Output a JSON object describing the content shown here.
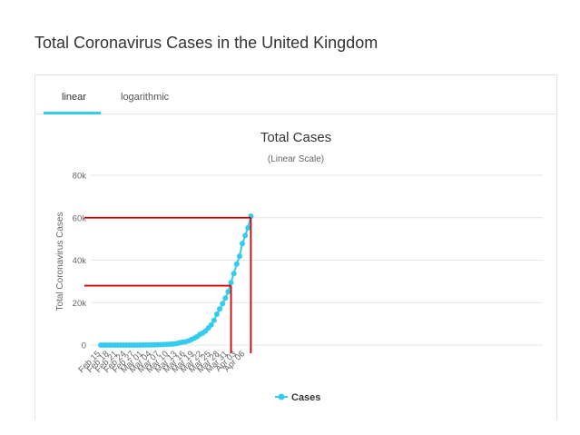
{
  "page_title": "Total Coronavirus Cases in the United Kingdom",
  "tabs": [
    {
      "label": "linear",
      "active": true
    },
    {
      "label": "logarithmic",
      "active": false
    }
  ],
  "colors": {
    "series": "#33ccee",
    "annotation": "#cc0000",
    "grid": "#e6e6e6",
    "tab_accent": "#33ccee"
  },
  "chart_data": {
    "type": "line",
    "title": "Total Cases",
    "subtitle": "(Linear Scale)",
    "ylabel": "Total Coronavirus Cases",
    "xlabel": "",
    "ylim": [
      0,
      80000
    ],
    "yticks": [
      0,
      20000,
      40000,
      60000,
      80000
    ],
    "ytick_labels": [
      "0",
      "20k",
      "40k",
      "60k",
      "80k"
    ],
    "x_tick_labels": [
      "Feb 15",
      "Feb 18",
      "Feb 21",
      "Feb 24",
      "Feb 27",
      "Mar 01",
      "Mar 04",
      "Mar 07",
      "Mar 10",
      "Mar 13",
      "Mar 16",
      "Mar 19",
      "Mar 22",
      "Mar 25",
      "Mar 28",
      "Mar 31",
      "Apr 03",
      "Apr 06"
    ],
    "grid": true,
    "legend": "bottom",
    "series": [
      {
        "name": "Cases",
        "x": [
          "Feb 15",
          "Feb 16",
          "Feb 17",
          "Feb 18",
          "Feb 19",
          "Feb 20",
          "Feb 21",
          "Feb 22",
          "Feb 23",
          "Feb 24",
          "Feb 25",
          "Feb 26",
          "Feb 27",
          "Feb 28",
          "Feb 29",
          "Mar 01",
          "Mar 02",
          "Mar 03",
          "Mar 04",
          "Mar 05",
          "Mar 06",
          "Mar 07",
          "Mar 08",
          "Mar 09",
          "Mar 10",
          "Mar 11",
          "Mar 12",
          "Mar 13",
          "Mar 14",
          "Mar 15",
          "Mar 16",
          "Mar 17",
          "Mar 18",
          "Mar 19",
          "Mar 20",
          "Mar 21",
          "Mar 22",
          "Mar 23",
          "Mar 24",
          "Mar 25",
          "Mar 26",
          "Mar 27",
          "Mar 28",
          "Mar 29",
          "Mar 30",
          "Mar 31",
          "Apr 01",
          "Apr 02",
          "Apr 03",
          "Apr 04",
          "Apr 05",
          "Apr 06",
          "Apr 07",
          "Apr 08"
        ],
        "values": [
          9,
          9,
          9,
          9,
          9,
          9,
          9,
          13,
          13,
          13,
          13,
          15,
          15,
          20,
          23,
          36,
          40,
          51,
          85,
          115,
          163,
          206,
          273,
          321,
          373,
          456,
          590,
          798,
          1140,
          1391,
          1543,
          1950,
          2626,
          3269,
          3983,
          5018,
          5683,
          6650,
          8077,
          9529,
          11658,
          14543,
          17089,
          19522,
          22141,
          25150,
          29474,
          33718,
          38168,
          41903,
          47806,
          51608,
          55242,
          60733
        ]
      }
    ],
    "annotations": [
      {
        "type": "hline",
        "y": 60000
      },
      {
        "type": "hline",
        "y": 28000
      },
      {
        "type": "vline",
        "x": "Apr 01"
      },
      {
        "type": "vline",
        "x": "Apr 08"
      }
    ]
  }
}
